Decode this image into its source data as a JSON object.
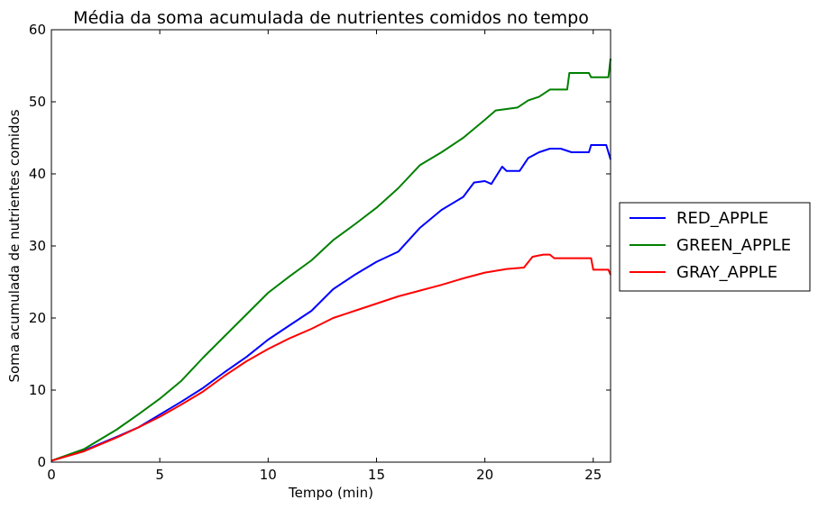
{
  "chart_data": {
    "type": "line",
    "title": "Média da soma acumulada de nutrientes comidos no tempo",
    "xlabel": "Tempo (min)",
    "ylabel": "Soma acumulada de nutrientes comidos",
    "xlim": [
      0,
      25.8
    ],
    "ylim": [
      0,
      60
    ],
    "xticks": [
      0,
      5,
      10,
      15,
      20,
      25
    ],
    "yticks": [
      0,
      10,
      20,
      30,
      40,
      50,
      60
    ],
    "grid": false,
    "legend_position": "right, outside plot area",
    "series": [
      {
        "name": "RED_APPLE",
        "color": "#0000ff",
        "points": [
          [
            0,
            0.2
          ],
          [
            1.5,
            1.6
          ],
          [
            3,
            3.5
          ],
          [
            4,
            4.8
          ],
          [
            5,
            6.6
          ],
          [
            6,
            8.4
          ],
          [
            7,
            10.3
          ],
          [
            8,
            12.5
          ],
          [
            9,
            14.6
          ],
          [
            10,
            17
          ],
          [
            11,
            19
          ],
          [
            12,
            21
          ],
          [
            13,
            24
          ],
          [
            14,
            26
          ],
          [
            15,
            27.8
          ],
          [
            16,
            29.2
          ],
          [
            17,
            32.5
          ],
          [
            18,
            35
          ],
          [
            19,
            36.8
          ],
          [
            19.5,
            38.8
          ],
          [
            20,
            39
          ],
          [
            20.3,
            38.6
          ],
          [
            20.8,
            41
          ],
          [
            21,
            40.4
          ],
          [
            21.6,
            40.4
          ],
          [
            22,
            42.2
          ],
          [
            22.5,
            43
          ],
          [
            23,
            43.5
          ],
          [
            23.5,
            43.5
          ],
          [
            24,
            43
          ],
          [
            24.8,
            43
          ],
          [
            24.9,
            44
          ],
          [
            25.6,
            44
          ],
          [
            25.8,
            42
          ]
        ]
      },
      {
        "name": "GREEN_APPLE",
        "color": "#008000",
        "points": [
          [
            0,
            0.2
          ],
          [
            1.5,
            1.8
          ],
          [
            3,
            4.5
          ],
          [
            4,
            6.6
          ],
          [
            5,
            8.8
          ],
          [
            6,
            11.3
          ],
          [
            7,
            14.5
          ],
          [
            8,
            17.5
          ],
          [
            9,
            20.5
          ],
          [
            10,
            23.5
          ],
          [
            11,
            25.8
          ],
          [
            12,
            28
          ],
          [
            13,
            30.8
          ],
          [
            14,
            33
          ],
          [
            15,
            35.3
          ],
          [
            16,
            38
          ],
          [
            17,
            41.2
          ],
          [
            18,
            43
          ],
          [
            19,
            45
          ],
          [
            20,
            47.5
          ],
          [
            20.5,
            48.8
          ],
          [
            21,
            49
          ],
          [
            21.5,
            49.2
          ],
          [
            22,
            50.2
          ],
          [
            22.5,
            50.7
          ],
          [
            23,
            51.7
          ],
          [
            23.8,
            51.7
          ],
          [
            23.9,
            54
          ],
          [
            24.8,
            54
          ],
          [
            24.9,
            53.4
          ],
          [
            25.7,
            53.4
          ],
          [
            25.8,
            56
          ]
        ]
      },
      {
        "name": "GRAY_APPLE",
        "color": "#ff0000",
        "points": [
          [
            0,
            0.2
          ],
          [
            1.5,
            1.5
          ],
          [
            3,
            3.4
          ],
          [
            4,
            4.8
          ],
          [
            5,
            6.3
          ],
          [
            6,
            8
          ],
          [
            7,
            9.8
          ],
          [
            8,
            12
          ],
          [
            9,
            14
          ],
          [
            10,
            15.7
          ],
          [
            11,
            17.2
          ],
          [
            12,
            18.5
          ],
          [
            13,
            20
          ],
          [
            14,
            21
          ],
          [
            15,
            22
          ],
          [
            16,
            23
          ],
          [
            17,
            23.8
          ],
          [
            18,
            24.6
          ],
          [
            19,
            25.5
          ],
          [
            20,
            26.3
          ],
          [
            21,
            26.8
          ],
          [
            21.8,
            27
          ],
          [
            22.2,
            28.5
          ],
          [
            22.7,
            28.8
          ],
          [
            23,
            28.8
          ],
          [
            23.2,
            28.3
          ],
          [
            24.9,
            28.3
          ],
          [
            25,
            26.7
          ],
          [
            25.7,
            26.7
          ],
          [
            25.8,
            26
          ]
        ]
      }
    ]
  }
}
